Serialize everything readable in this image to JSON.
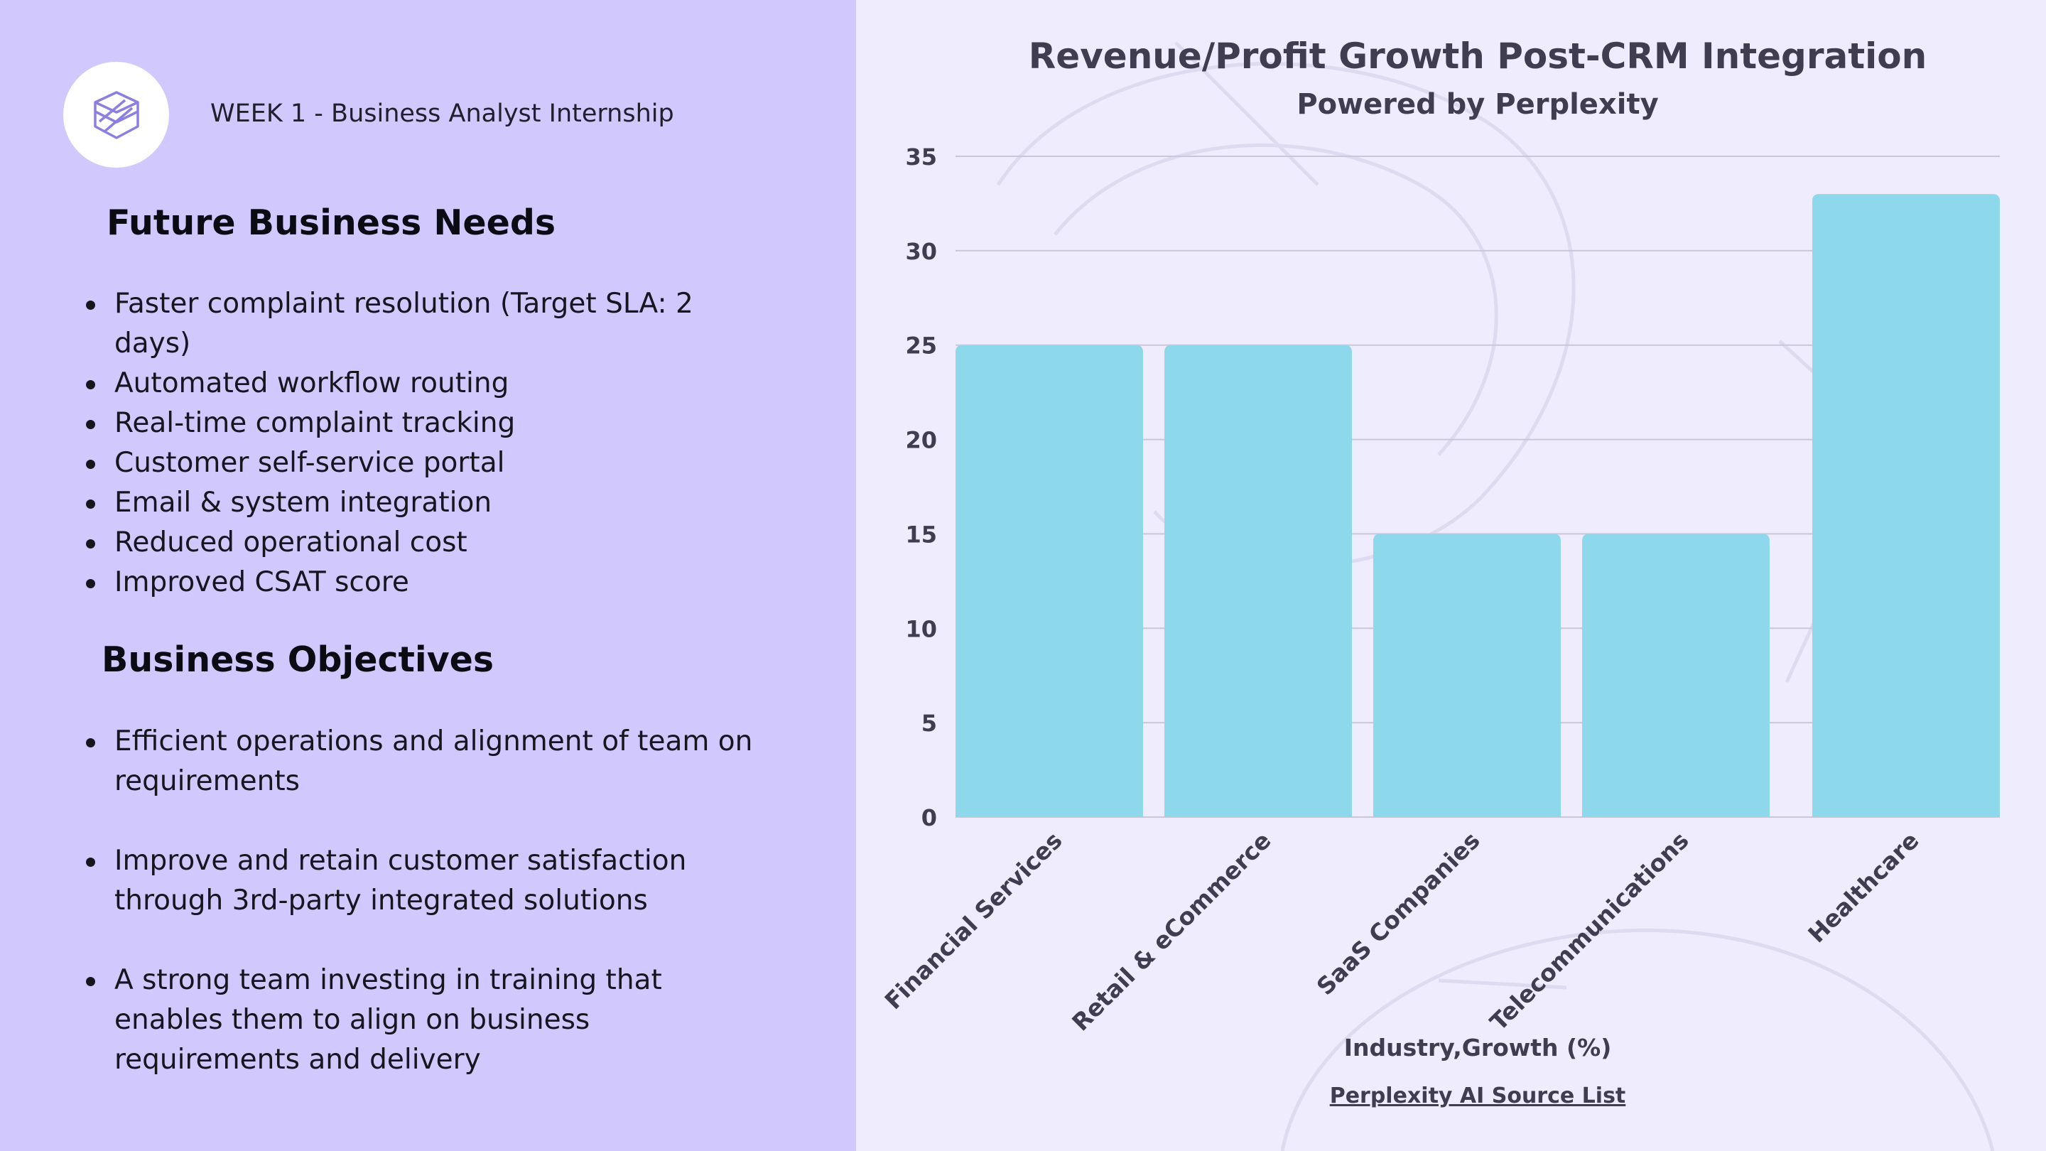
{
  "header": {
    "week_label": "WEEK 1 - Business Analyst Internship",
    "logo_icon": "layered-cube-icon"
  },
  "future_needs": {
    "heading": "Future Business Needs",
    "items": [
      "Faster complaint resolution (Target SLA: 2 days)",
      "Automated workflow routing",
      "Real-time complaint tracking",
      "Customer self-service portal",
      "Email & system integration",
      "Reduced operational cost",
      "Improved CSAT score"
    ]
  },
  "objectives": {
    "heading": "Business Objectives",
    "items": [
      "Efficient operations and alignment of team on requirements",
      "Improve and retain customer satisfaction through 3rd-party integrated solutions",
      "A strong team investing in training that enables them to align on business requirements and delivery"
    ]
  },
  "colors": {
    "left_panel": "#d1c8fe",
    "right_panel": "#efecfd",
    "bar": "#8ed8ec",
    "text_dark": "#3f3d4f",
    "logo_stroke": "#8b7fe0"
  },
  "chart_data": {
    "type": "bar",
    "title": "Revenue/Profit Growth Post-CRM Integration",
    "subtitle": "Powered by Perplexity",
    "categories": [
      "Financial Services",
      "Retail & eCommerce",
      "SaaS Companies",
      "Telecommunications",
      "Healthcare"
    ],
    "values": [
      25,
      25,
      15,
      15,
      33
    ],
    "xlabel": "Industry,Growth (%)",
    "ylabel": "",
    "ylim": [
      0,
      35
    ],
    "yticks": [
      0,
      5,
      10,
      15,
      20,
      25,
      30,
      35
    ],
    "grid": true,
    "legend": "none"
  },
  "source_link": "Perplexity AI Source List"
}
